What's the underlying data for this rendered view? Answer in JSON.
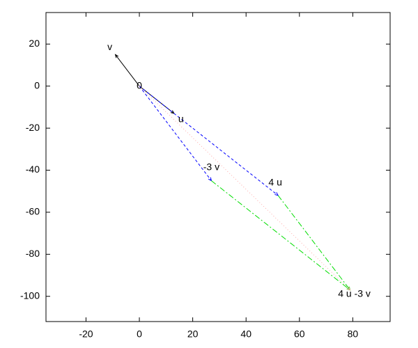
{
  "chart_data": {
    "type": "vector",
    "xlim": [
      -35,
      94
    ],
    "ylim": [
      -112,
      35
    ],
    "xticks": [
      -20,
      0,
      20,
      40,
      60,
      80
    ],
    "yticks": [
      20,
      0,
      -20,
      -40,
      -60,
      -80,
      -100
    ],
    "segments": [
      {
        "x": [
          0,
          13
        ],
        "y": [
          0,
          -13
        ],
        "color": "#000000",
        "dash": "solid"
      },
      {
        "x": [
          0,
          -9
        ],
        "y": [
          0,
          15
        ],
        "color": "#000000",
        "dash": "solid"
      },
      {
        "x": [
          0,
          52
        ],
        "y": [
          0,
          -52
        ],
        "color": "#0000ff",
        "dash": "dashed"
      },
      {
        "x": [
          0,
          27
        ],
        "y": [
          0,
          -45
        ],
        "color": "#0000ff",
        "dash": "dashed"
      },
      {
        "x": [
          52,
          79
        ],
        "y": [
          -52,
          -97
        ],
        "color": "#00dd00",
        "dash": "dashdot"
      },
      {
        "x": [
          27,
          79
        ],
        "y": [
          -45,
          -97
        ],
        "color": "#00dd00",
        "dash": "dashdot"
      },
      {
        "x": [
          0,
          79
        ],
        "y": [
          0,
          -97
        ],
        "color": "#ffaaaa",
        "dash": "dotted"
      }
    ],
    "labels": [
      {
        "text": "0",
        "x": 0,
        "y": 0
      },
      {
        "text": "v",
        "x": -9,
        "y": 15
      },
      {
        "text": "u",
        "x": 13,
        "y": -13
      },
      {
        "text": "-3 v",
        "x": 27,
        "y": -45
      },
      {
        "text": "4 u",
        "x": 52,
        "y": -52
      },
      {
        "text": "4 u -3 v",
        "x": 79,
        "y": -97
      }
    ]
  }
}
